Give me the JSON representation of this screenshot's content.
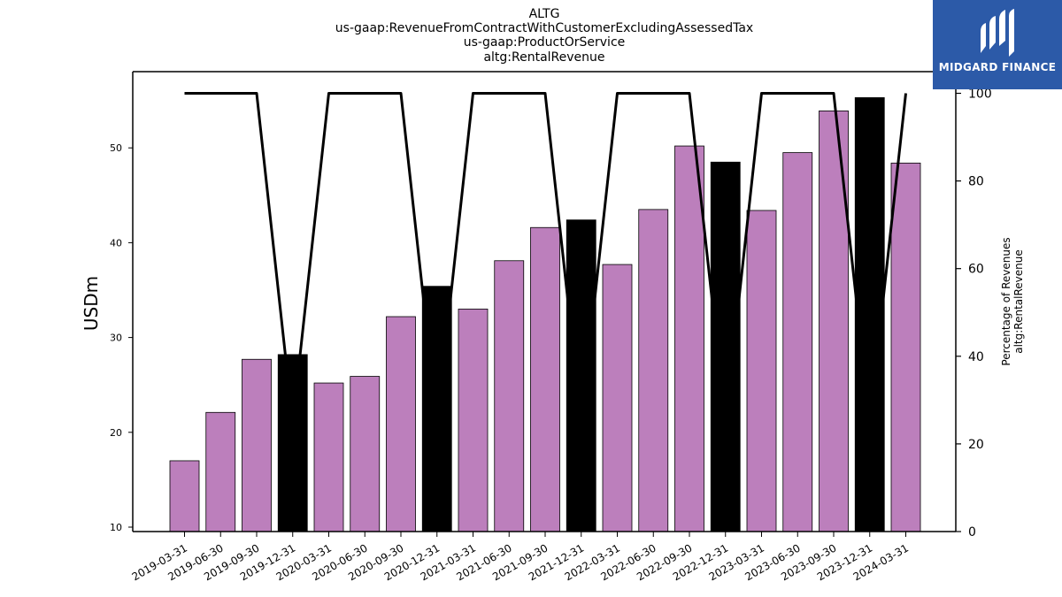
{
  "logo": {
    "name": "MIDGARD FINANCE",
    "background": "#2c5aa8"
  },
  "chart_data": {
    "type": "bar",
    "title_lines": [
      "ALTG",
      "us-gaap:RevenueFromContractWithCustomerExcludingAssessedTax",
      "us-gaap:ProductOrService",
      "altg:RentalRevenue"
    ],
    "ylabel": "USDm",
    "y2label_lines": [
      "Percentage of Revenues",
      "altg:RentalRevenue"
    ],
    "categories": [
      "2019-03-31",
      "2019-06-30",
      "2019-09-30",
      "2019-12-31",
      "2020-03-31",
      "2020-06-30",
      "2020-09-30",
      "2020-12-31",
      "2021-03-31",
      "2021-06-30",
      "2021-09-30",
      "2021-12-31",
      "2022-03-31",
      "2022-06-30",
      "2022-09-30",
      "2022-12-31",
      "2023-03-31",
      "2023-06-30",
      "2023-09-30",
      "2023-12-31",
      "2024-03-31"
    ],
    "values": [
      17.0,
      22.1,
      27.7,
      28.2,
      25.2,
      25.9,
      32.2,
      35.4,
      33.0,
      38.1,
      41.6,
      42.4,
      37.7,
      43.5,
      50.2,
      48.5,
      43.4,
      49.5,
      53.9,
      55.3,
      48.4
    ],
    "bar_highlight": [
      false,
      false,
      false,
      true,
      false,
      false,
      false,
      true,
      false,
      false,
      false,
      true,
      false,
      false,
      false,
      true,
      false,
      false,
      false,
      true,
      false
    ],
    "bar_color": "#bc7fbc",
    "highlight_color": "#000000",
    "percentage_series": [
      100,
      100,
      100,
      25,
      100,
      100,
      100,
      25,
      100,
      100,
      100,
      25,
      100,
      100,
      100,
      25,
      100,
      100,
      100,
      25,
      100
    ],
    "ylim": [
      9.5,
      58
    ],
    "y2lim": [
      0,
      105
    ],
    "yticks": [
      10,
      20,
      30,
      40,
      50
    ],
    "y2ticks": [
      0,
      20,
      40,
      60,
      80,
      100
    ]
  }
}
